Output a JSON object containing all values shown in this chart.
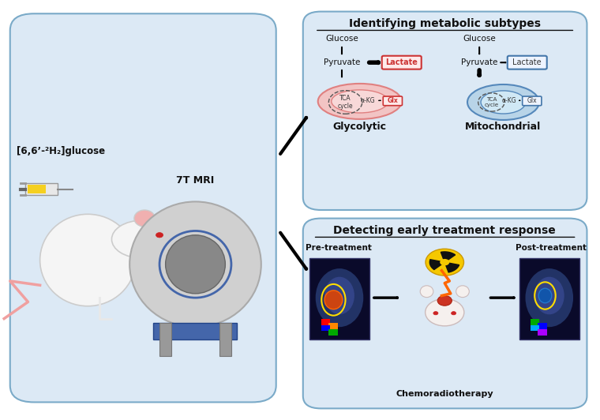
{
  "bg_color": "#ffffff",
  "left_panel_bg": "#dce9f5",
  "right_top_panel_bg": "#dce9f5",
  "right_bottom_panel_bg": "#dce9f5",
  "title_metabolic": "Identifying metabolic subtypes",
  "title_treatment": "Detecting early treatment response",
  "label_glycolytic": "Glycolytic",
  "label_mitochondrial": "Mitochondrial",
  "label_pretreatment": "Pre-treatment",
  "label_posttreatment": "Post-treatment",
  "label_chemorad": "Chemoradiotherapy",
  "label_mri": "7T MRI",
  "label_glucose_formula": "[6,6’-²H₂]glucose",
  "pink_mito_color": "#f2c4c4",
  "blue_mito_color": "#b8d4e8",
  "alpha_kg": "α-KG"
}
